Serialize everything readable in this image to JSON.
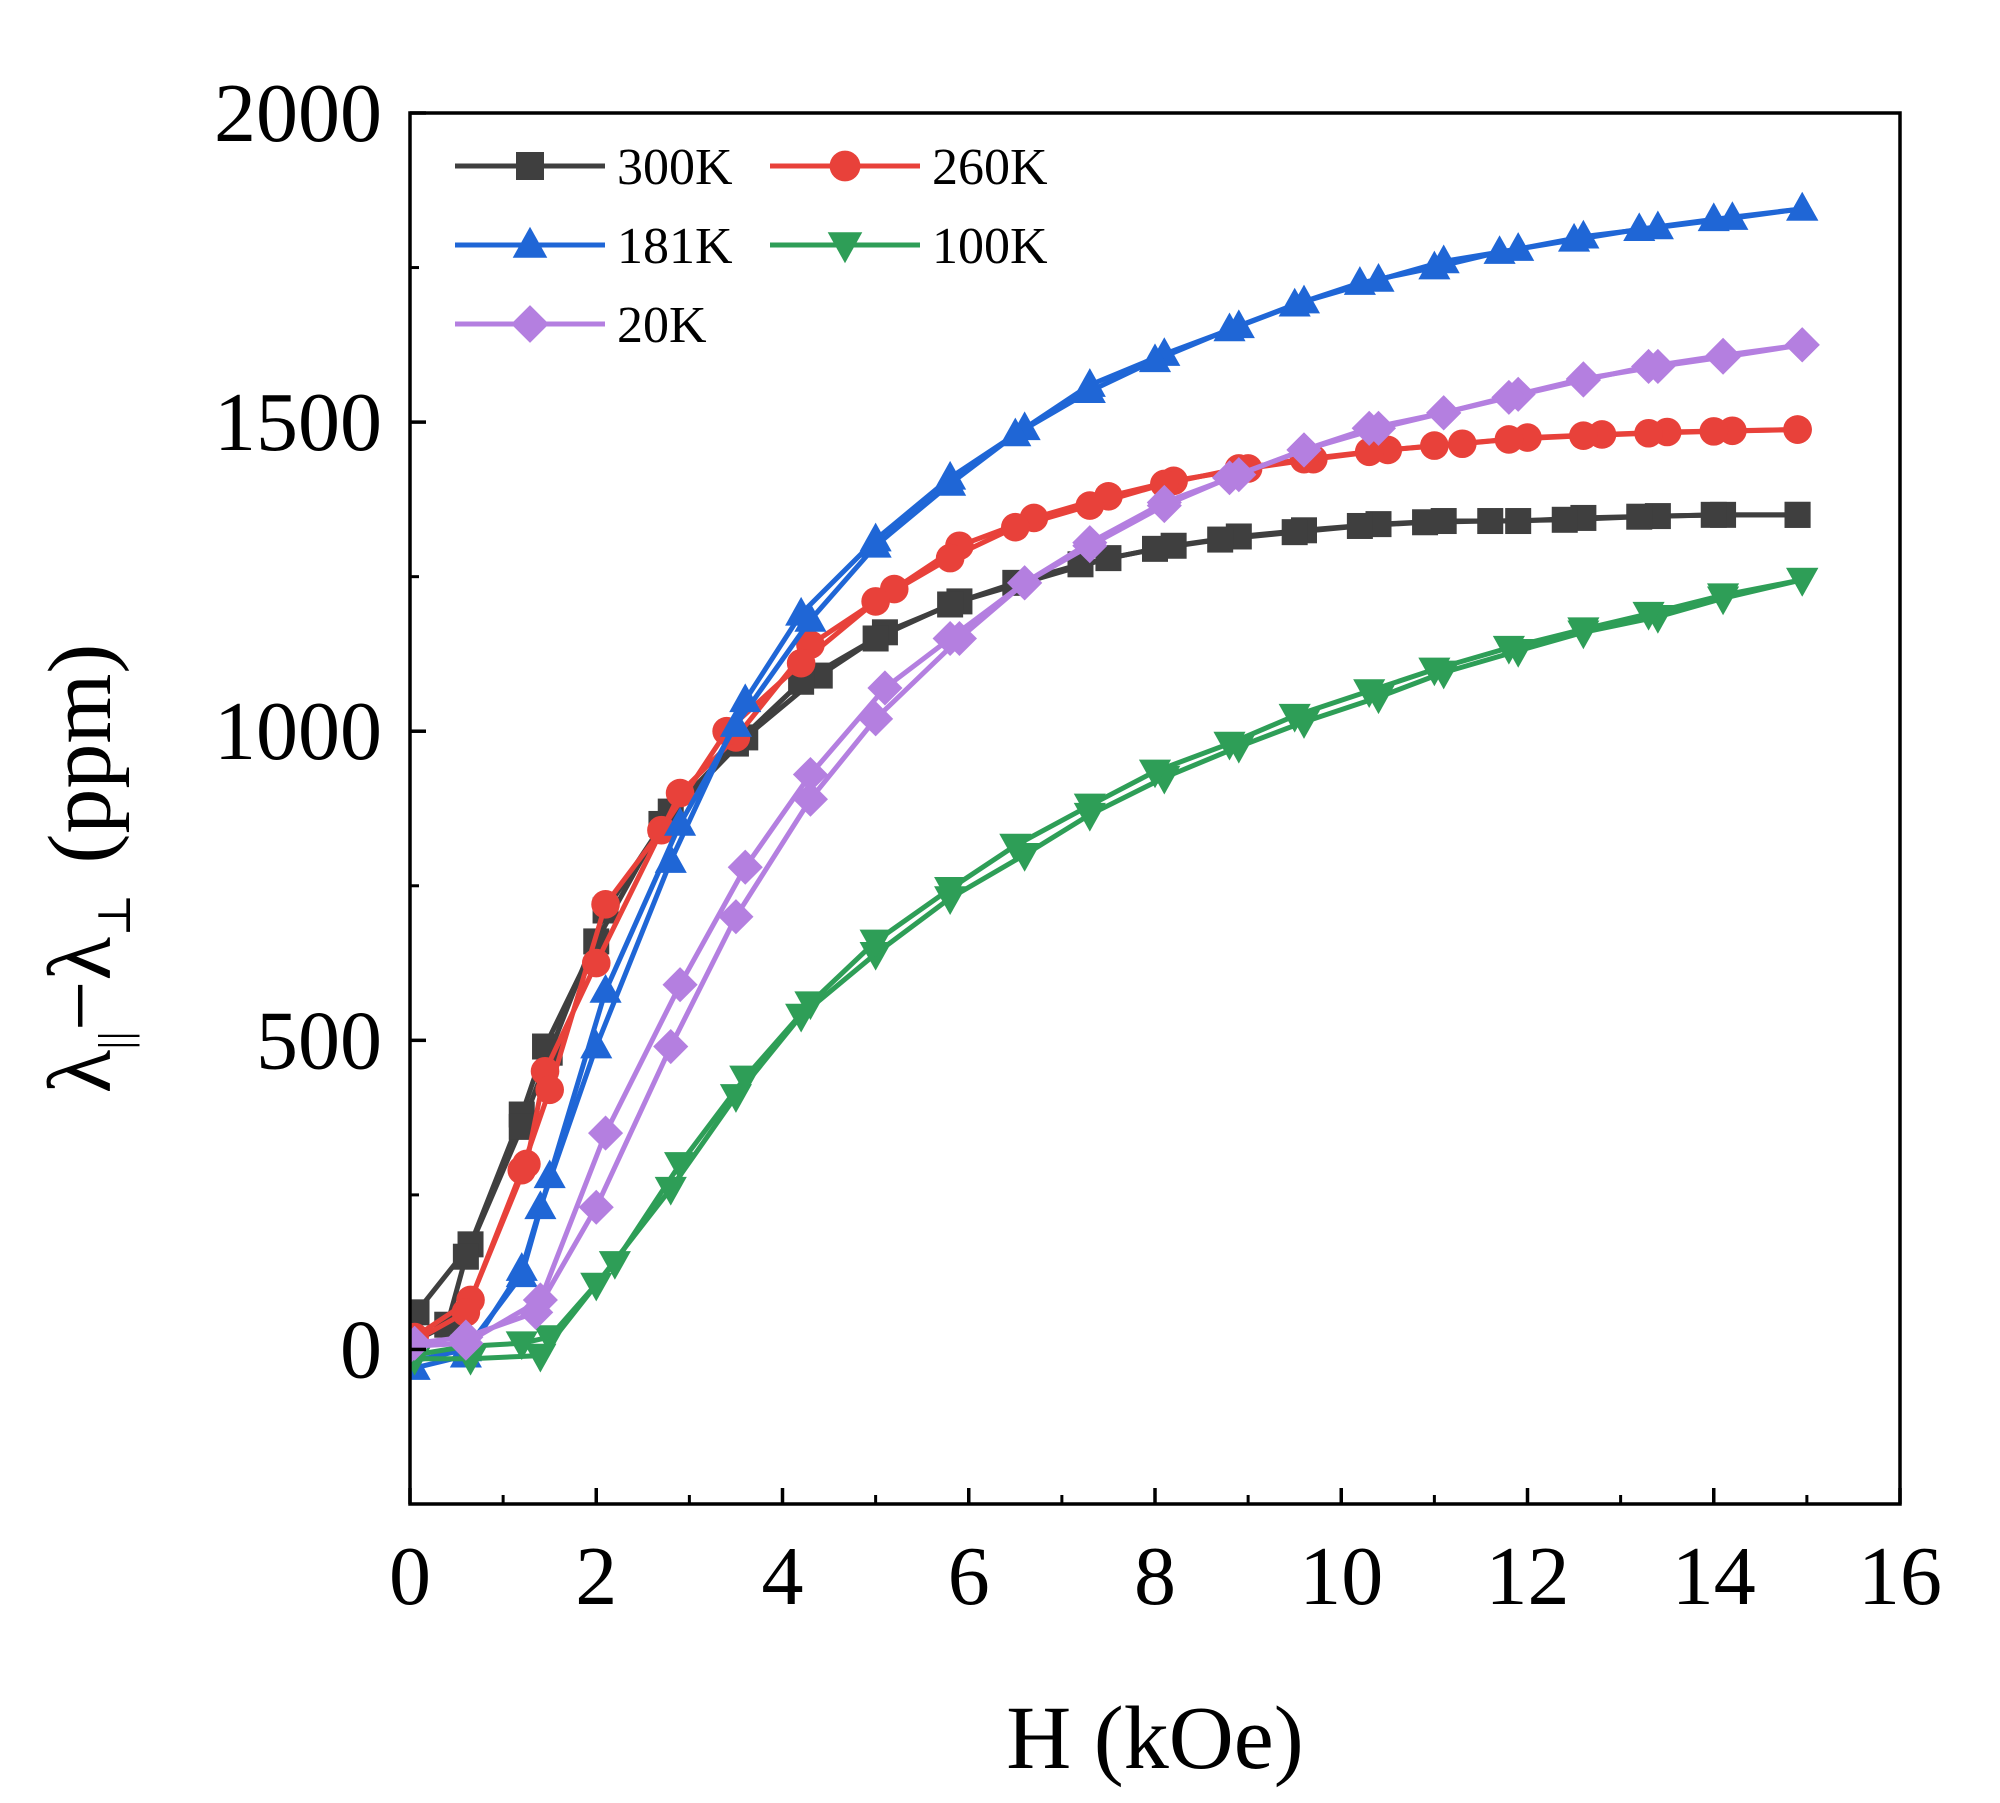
{
  "chart_data": {
    "type": "line",
    "title": "",
    "xlabel": "H (kOe)",
    "ylabel": {
      "prefix": "λ",
      "sub1": "||",
      "minus": "−",
      "lambda2": "λ",
      "sub2": "⊥",
      "unit": "(ppm)"
    },
    "xlim": [
      0,
      16
    ],
    "ylim": [
      -250,
      2000
    ],
    "xticks": [
      0,
      2,
      4,
      6,
      8,
      10,
      12,
      14,
      16
    ],
    "yticks": [
      0,
      500,
      1000,
      1500,
      2000
    ],
    "grid": false,
    "legend_position": "top-left",
    "series": [
      {
        "name": "300K",
        "color": "#3f3f3f",
        "marker": "square",
        "up": [
          [
            0.07,
            60
          ],
          [
            0.65,
            170
          ],
          [
            1.2,
            380
          ],
          [
            1.45,
            490
          ],
          [
            2.0,
            660
          ],
          [
            2.7,
            850
          ],
          [
            3.6,
            990
          ],
          [
            4.4,
            1090
          ],
          [
            5.1,
            1160
          ],
          [
            5.9,
            1210
          ],
          [
            7.5,
            1280
          ],
          [
            8.2,
            1300
          ],
          [
            8.9,
            1315
          ],
          [
            9.6,
            1325
          ],
          [
            10.4,
            1335
          ],
          [
            11.1,
            1340
          ],
          [
            11.9,
            1340
          ],
          [
            12.6,
            1345
          ],
          [
            13.4,
            1348
          ],
          [
            14.1,
            1350
          ],
          [
            14.9,
            1350
          ]
        ],
        "down": [
          [
            14.9,
            1350
          ],
          [
            14.0,
            1350
          ],
          [
            13.2,
            1347
          ],
          [
            12.4,
            1342
          ],
          [
            11.6,
            1340
          ],
          [
            10.9,
            1338
          ],
          [
            10.2,
            1332
          ],
          [
            9.5,
            1322
          ],
          [
            8.7,
            1310
          ],
          [
            8.0,
            1295
          ],
          [
            7.2,
            1270
          ],
          [
            6.5,
            1240
          ],
          [
            5.8,
            1205
          ],
          [
            5.0,
            1150
          ],
          [
            4.2,
            1080
          ],
          [
            3.5,
            980
          ],
          [
            2.8,
            870
          ],
          [
            2.1,
            710
          ],
          [
            1.5,
            480
          ],
          [
            1.2,
            360
          ],
          [
            0.6,
            150
          ],
          [
            0.4,
            40
          ],
          [
            0.0,
            10
          ]
        ]
      },
      {
        "name": "260K",
        "color": "#e8413a",
        "marker": "circle",
        "up": [
          [
            0.05,
            20
          ],
          [
            0.65,
            80
          ],
          [
            1.25,
            300
          ],
          [
            1.45,
            450
          ],
          [
            2.0,
            625
          ],
          [
            2.9,
            900
          ],
          [
            3.5,
            990
          ],
          [
            4.3,
            1140
          ],
          [
            5.2,
            1230
          ],
          [
            5.9,
            1300
          ],
          [
            6.7,
            1345
          ],
          [
            7.5,
            1380
          ],
          [
            8.2,
            1405
          ],
          [
            9.0,
            1425
          ],
          [
            9.7,
            1440
          ],
          [
            10.5,
            1455
          ],
          [
            11.3,
            1465
          ],
          [
            12.0,
            1475
          ],
          [
            12.8,
            1480
          ],
          [
            13.5,
            1484
          ],
          [
            14.2,
            1486
          ],
          [
            14.9,
            1488
          ]
        ],
        "down": [
          [
            14.9,
            1488
          ],
          [
            14.0,
            1485
          ],
          [
            13.3,
            1482
          ],
          [
            12.6,
            1478
          ],
          [
            11.8,
            1472
          ],
          [
            11.0,
            1462
          ],
          [
            10.3,
            1452
          ],
          [
            9.6,
            1440
          ],
          [
            8.9,
            1425
          ],
          [
            8.1,
            1400
          ],
          [
            7.3,
            1365
          ],
          [
            6.5,
            1330
          ],
          [
            5.8,
            1280
          ],
          [
            5.0,
            1210
          ],
          [
            4.2,
            1110
          ],
          [
            3.4,
            1000
          ],
          [
            2.7,
            840
          ],
          [
            2.1,
            720
          ],
          [
            1.5,
            420
          ],
          [
            1.2,
            290
          ],
          [
            0.6,
            60
          ],
          [
            0.0,
            10
          ]
        ]
      },
      {
        "name": "181K",
        "color": "#1f66d6",
        "marker": "triangle-up",
        "up": [
          [
            0.05,
            -30
          ],
          [
            0.6,
            -10
          ],
          [
            1.2,
            130
          ],
          [
            1.4,
            230
          ],
          [
            2.0,
            490
          ],
          [
            2.8,
            790
          ],
          [
            3.6,
            1050
          ],
          [
            4.2,
            1190
          ],
          [
            5.0,
            1310
          ],
          [
            5.8,
            1410
          ],
          [
            6.6,
            1490
          ],
          [
            7.3,
            1560
          ],
          [
            8.1,
            1610
          ],
          [
            8.9,
            1655
          ],
          [
            9.6,
            1695
          ],
          [
            10.4,
            1730
          ],
          [
            11.1,
            1760
          ],
          [
            11.9,
            1780
          ],
          [
            12.6,
            1800
          ],
          [
            13.4,
            1815
          ],
          [
            14.2,
            1830
          ],
          [
            14.95,
            1845
          ]
        ],
        "down": [
          [
            14.95,
            1845
          ],
          [
            14.0,
            1828
          ],
          [
            13.2,
            1812
          ],
          [
            12.5,
            1795
          ],
          [
            11.7,
            1775
          ],
          [
            11.0,
            1750
          ],
          [
            10.2,
            1725
          ],
          [
            9.5,
            1690
          ],
          [
            8.8,
            1650
          ],
          [
            8.0,
            1600
          ],
          [
            7.3,
            1550
          ],
          [
            6.5,
            1480
          ],
          [
            5.8,
            1400
          ],
          [
            5.0,
            1300
          ],
          [
            4.3,
            1180
          ],
          [
            3.5,
            1010
          ],
          [
            2.9,
            850
          ],
          [
            2.1,
            580
          ],
          [
            1.5,
            280
          ],
          [
            1.2,
            120
          ],
          [
            0.6,
            0
          ],
          [
            0.0,
            -20
          ]
        ]
      },
      {
        "name": "100K",
        "color": "#2e9e57",
        "marker": "triangle-down",
        "up": [
          [
            0.05,
            -15
          ],
          [
            0.65,
            -15
          ],
          [
            1.4,
            -10
          ],
          [
            2.0,
            105
          ],
          [
            2.8,
            260
          ],
          [
            3.5,
            410
          ],
          [
            4.2,
            540
          ],
          [
            5.0,
            640
          ],
          [
            5.8,
            730
          ],
          [
            6.6,
            800
          ],
          [
            7.3,
            865
          ],
          [
            8.1,
            925
          ],
          [
            8.9,
            975
          ],
          [
            9.6,
            1015
          ],
          [
            10.4,
            1055
          ],
          [
            11.1,
            1095
          ],
          [
            11.9,
            1130
          ],
          [
            12.6,
            1160
          ],
          [
            13.4,
            1185
          ],
          [
            14.1,
            1215
          ],
          [
            14.95,
            1245
          ]
        ],
        "down": [
          [
            14.95,
            1245
          ],
          [
            14.1,
            1220
          ],
          [
            13.3,
            1190
          ],
          [
            12.6,
            1165
          ],
          [
            11.8,
            1135
          ],
          [
            11.0,
            1100
          ],
          [
            10.3,
            1065
          ],
          [
            9.5,
            1025
          ],
          [
            8.8,
            980
          ],
          [
            8.0,
            935
          ],
          [
            7.3,
            880
          ],
          [
            6.5,
            815
          ],
          [
            5.8,
            745
          ],
          [
            5.0,
            660
          ],
          [
            4.3,
            560
          ],
          [
            3.6,
            440
          ],
          [
            2.9,
            300
          ],
          [
            2.2,
            140
          ],
          [
            1.5,
            20
          ],
          [
            1.2,
            10
          ],
          [
            0.6,
            5
          ],
          [
            0.0,
            -10
          ]
        ]
      },
      {
        "name": "20K",
        "color": "#b47fe0",
        "marker": "diamond",
        "up": [
          [
            0.05,
            10
          ],
          [
            0.6,
            20
          ],
          [
            1.35,
            60
          ],
          [
            2.0,
            230
          ],
          [
            2.8,
            490
          ],
          [
            3.5,
            700
          ],
          [
            4.3,
            890
          ],
          [
            5.0,
            1020
          ],
          [
            5.9,
            1150
          ],
          [
            6.6,
            1240
          ],
          [
            7.3,
            1305
          ],
          [
            8.1,
            1370
          ],
          [
            8.9,
            1415
          ],
          [
            9.6,
            1455
          ],
          [
            10.4,
            1490
          ],
          [
            11.1,
            1515
          ],
          [
            11.9,
            1545
          ],
          [
            12.6,
            1570
          ],
          [
            13.4,
            1590
          ],
          [
            14.1,
            1605
          ],
          [
            14.95,
            1625
          ]
        ],
        "down": [
          [
            14.95,
            1625
          ],
          [
            14.1,
            1608
          ],
          [
            13.3,
            1590
          ],
          [
            12.6,
            1568
          ],
          [
            11.8,
            1540
          ],
          [
            11.1,
            1515
          ],
          [
            10.3,
            1490
          ],
          [
            9.6,
            1455
          ],
          [
            8.8,
            1410
          ],
          [
            8.1,
            1365
          ],
          [
            7.3,
            1300
          ],
          [
            6.6,
            1240
          ],
          [
            5.8,
            1150
          ],
          [
            5.1,
            1070
          ],
          [
            4.3,
            930
          ],
          [
            3.6,
            780
          ],
          [
            2.9,
            590
          ],
          [
            2.1,
            350
          ],
          [
            1.4,
            80
          ],
          [
            0.6,
            10
          ],
          [
            0.0,
            5
          ]
        ]
      }
    ]
  }
}
